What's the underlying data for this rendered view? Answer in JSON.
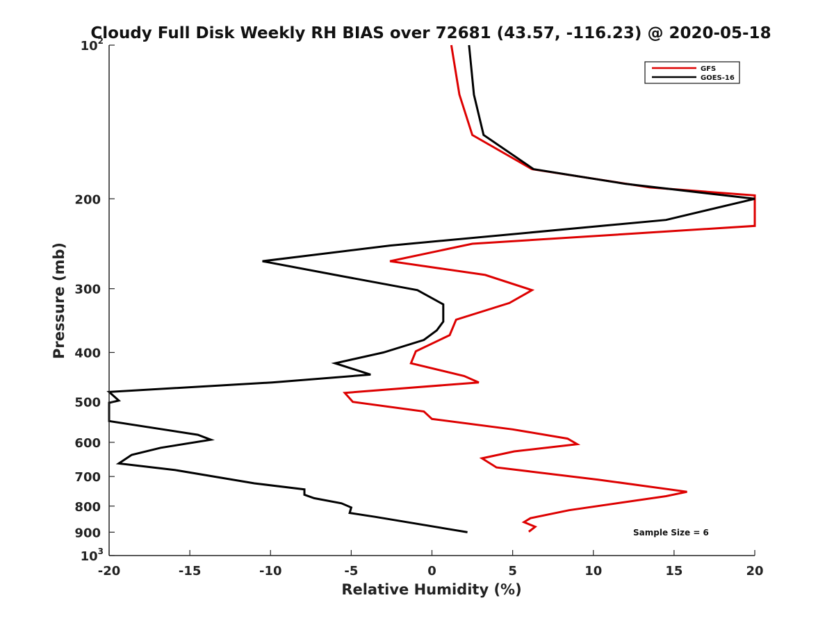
{
  "chart_data": {
    "type": "line",
    "title": "Cloudy Full Disk Weekly RH BIAS over 72681 (43.57, -116.23) @ 2020-05-18",
    "xlabel": "Relative Humidity (%)",
    "ylabel": "Pressure (mb)",
    "xlim": [
      -20,
      20
    ],
    "ylim": [
      1000,
      100
    ],
    "y_scale": "log",
    "y_reversed": true,
    "x_ticks": [
      "-20",
      "-15",
      "-10",
      "-5",
      "0",
      "5",
      "10",
      "15",
      "20"
    ],
    "y_ticks": [
      {
        "value": 100,
        "label": "10",
        "exp": "2"
      },
      {
        "value": 200,
        "label": "200"
      },
      {
        "value": 300,
        "label": "300"
      },
      {
        "value": 400,
        "label": "400"
      },
      {
        "value": 500,
        "label": "500"
      },
      {
        "value": 600,
        "label": "600"
      },
      {
        "value": 700,
        "label": "700"
      },
      {
        "value": 800,
        "label": "800"
      },
      {
        "value": 900,
        "label": "900"
      },
      {
        "value": 1000,
        "label": "10",
        "exp": "3"
      }
    ],
    "grid": false,
    "legend_position": "top-right",
    "annotation": "Sample Size = 6",
    "series": [
      {
        "name": "GFS",
        "color": "#dd0000",
        "points": [
          [
            1.2,
            100
          ],
          [
            1.7,
            125
          ],
          [
            2.5,
            150
          ],
          [
            6.2,
            175
          ],
          [
            13.5,
            190
          ],
          [
            20,
            197
          ],
          [
            20,
            226
          ],
          [
            2.5,
            245
          ],
          [
            -2.6,
            265
          ],
          [
            3.3,
            282
          ],
          [
            6.2,
            302
          ],
          [
            4.8,
            320
          ],
          [
            1.5,
            345
          ],
          [
            1.1,
            370
          ],
          [
            -1.0,
            398
          ],
          [
            -1.3,
            420
          ],
          [
            2.0,
            445
          ],
          [
            2.9,
            458
          ],
          [
            -5.4,
            480
          ],
          [
            -4.9,
            500
          ],
          [
            -0.5,
            522
          ],
          [
            0,
            540
          ],
          [
            5.0,
            566
          ],
          [
            8.4,
            590
          ],
          [
            9.0,
            605
          ],
          [
            5.1,
            625
          ],
          [
            3.1,
            645
          ],
          [
            4.0,
            672
          ],
          [
            10.3,
            710
          ],
          [
            15.8,
            750
          ],
          [
            14.5,
            765
          ],
          [
            8.5,
            815
          ],
          [
            6.1,
            845
          ],
          [
            5.7,
            860
          ],
          [
            6.4,
            878
          ],
          [
            6.0,
            898
          ]
        ]
      },
      {
        "name": "GOES-16",
        "color": "#000000",
        "points": [
          [
            2.3,
            100
          ],
          [
            2.6,
            125
          ],
          [
            3.2,
            150
          ],
          [
            6.3,
            175
          ],
          [
            12.0,
            187
          ],
          [
            20,
            200
          ],
          [
            14.5,
            220
          ],
          [
            -2.6,
            247
          ],
          [
            -10.5,
            265
          ],
          [
            -5.7,
            283
          ],
          [
            -0.9,
            302
          ],
          [
            0.7,
            322
          ],
          [
            0.7,
            348
          ],
          [
            0.3,
            362
          ],
          [
            -0.5,
            378
          ],
          [
            -3.0,
            400
          ],
          [
            -6.0,
            420
          ],
          [
            -3.8,
            442
          ],
          [
            -9.9,
            458
          ],
          [
            -20,
            478
          ],
          [
            -19.4,
            497
          ],
          [
            -20,
            502
          ],
          [
            -20,
            545
          ],
          [
            -14.5,
            580
          ],
          [
            -13.7,
            593
          ],
          [
            -16.8,
            615
          ],
          [
            -18.6,
            635
          ],
          [
            -19.4,
            660
          ],
          [
            -15.9,
            680
          ],
          [
            -11.0,
            722
          ],
          [
            -7.9,
            742
          ],
          [
            -7.9,
            760
          ],
          [
            -7.3,
            772
          ],
          [
            -5.6,
            790
          ],
          [
            -5.0,
            805
          ],
          [
            -5.1,
            825
          ],
          [
            -3.5,
            840
          ],
          [
            2.2,
            900
          ]
        ]
      }
    ]
  }
}
